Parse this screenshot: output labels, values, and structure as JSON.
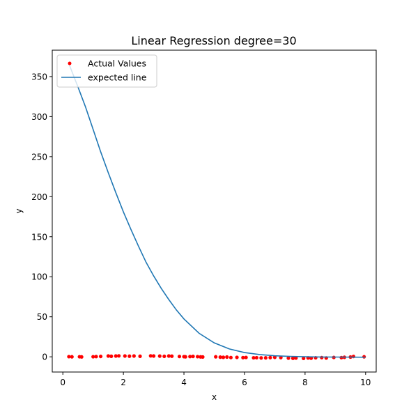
{
  "chart_data": {
    "type": "scatter",
    "title": "Linear Regression degree=30",
    "xlabel": "x",
    "ylabel": "y",
    "xlim": [
      -0.35,
      10.35
    ],
    "ylim": [
      -19,
      383
    ],
    "xticks": [
      0,
      2,
      4,
      6,
      8,
      10
    ],
    "yticks": [
      0,
      50,
      100,
      150,
      200,
      250,
      300,
      350
    ],
    "legend": {
      "location": "upper-left",
      "entries": [
        "Actual Values",
        "expected line"
      ]
    },
    "grid": false,
    "colors": {
      "points": "#ff0000",
      "line": "#1f77b4"
    },
    "series": [
      {
        "name": "Actual Values",
        "kind": "scatter",
        "x": [
          0.2,
          0.3,
          0.55,
          0.62,
          1.0,
          1.1,
          1.25,
          1.5,
          1.6,
          1.75,
          1.85,
          2.05,
          2.2,
          2.35,
          2.55,
          2.9,
          3.0,
          3.2,
          3.35,
          3.5,
          3.6,
          3.85,
          4.0,
          4.05,
          4.2,
          4.3,
          4.45,
          4.55,
          4.62,
          5.05,
          5.2,
          5.3,
          5.42,
          5.55,
          5.75,
          5.95,
          6.05,
          6.3,
          6.4,
          6.55,
          6.7,
          6.85,
          7.0,
          7.2,
          7.45,
          7.6,
          7.7,
          7.95,
          8.1,
          8.2,
          8.35,
          8.55,
          8.7,
          8.95,
          9.2,
          9.3,
          9.5,
          9.6,
          9.95
        ],
        "y": [
          0.2,
          0.0,
          0.1,
          -0.1,
          0.1,
          0.3,
          0.5,
          1.0,
          0.7,
          1.0,
          1.2,
          1.0,
          0.8,
          1.0,
          0.7,
          1.2,
          1.0,
          0.9,
          0.6,
          1.0,
          0.8,
          0.4,
          0.2,
          0.0,
          0.3,
          0.5,
          0.2,
          -0.1,
          -0.2,
          0.0,
          -0.4,
          -0.6,
          -0.3,
          -0.9,
          -0.7,
          -1.0,
          -0.8,
          -1.2,
          -1.1,
          -1.4,
          -1.3,
          -1.0,
          -0.6,
          -1.0,
          -1.6,
          -1.8,
          -1.5,
          -1.9,
          -1.4,
          -1.7,
          -1.2,
          -1.0,
          -1.5,
          -0.8,
          -1.0,
          -0.6,
          -0.3,
          0.4,
          0.0
        ]
      },
      {
        "name": "expected line",
        "kind": "line",
        "x": [
          0.2,
          0.5,
          0.75,
          1.0,
          1.25,
          1.5,
          1.75,
          2.0,
          2.25,
          2.5,
          2.75,
          3.0,
          3.25,
          3.5,
          3.75,
          4.0,
          4.5,
          5.0,
          5.5,
          6.0,
          6.5,
          7.0,
          7.5,
          8.0,
          8.5,
          9.0,
          9.5,
          10.0
        ],
        "y": [
          366,
          337,
          312,
          284,
          256,
          230,
          205,
          181,
          159,
          138,
          118,
          101,
          85.5,
          71.5,
          58.5,
          47.3,
          29.4,
          17.4,
          9.8,
          5.3,
          2.8,
          1.3,
          0.5,
          0.1,
          -0.2,
          -0.3,
          -0.4,
          -0.5
        ]
      }
    ]
  }
}
